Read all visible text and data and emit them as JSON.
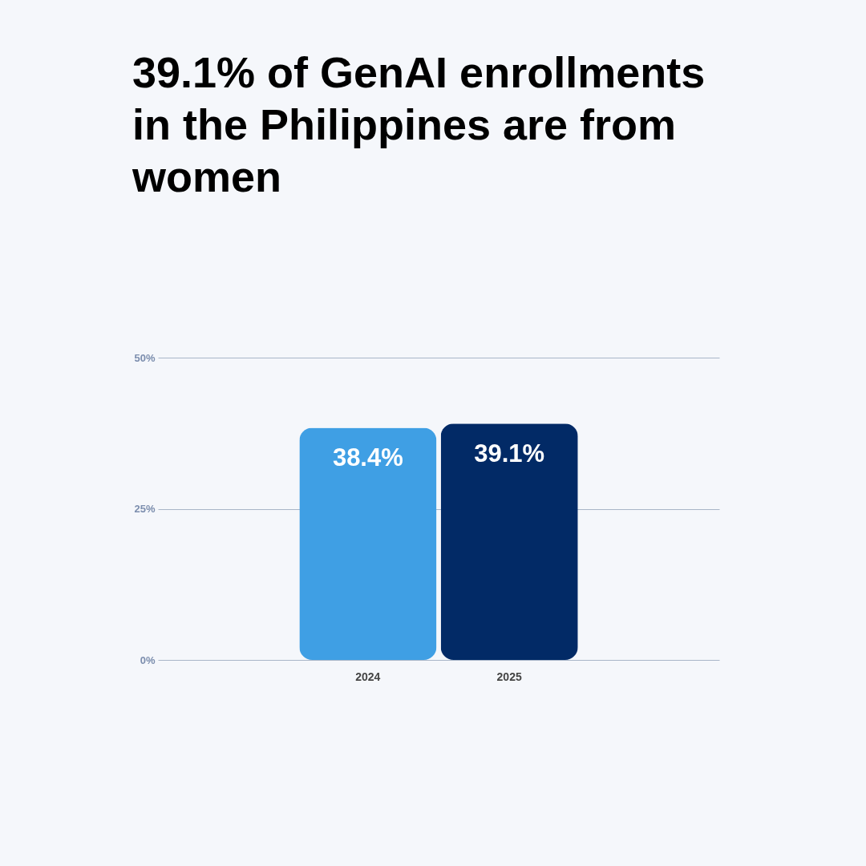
{
  "chart_data": {
    "type": "bar",
    "title": "39.1% of GenAI enrollments in the Philippines are from women",
    "categories": [
      "2024",
      "2025"
    ],
    "values": [
      38.4,
      39.1
    ],
    "colors": [
      "#3f9fe4",
      "#022a66"
    ],
    "value_labels": [
      "38.4%",
      "39.1%"
    ],
    "ylim": [
      0,
      50
    ],
    "yticks": [
      {
        "value": 0,
        "label": "0%"
      },
      {
        "value": 25,
        "label": "25%"
      },
      {
        "value": 50,
        "label": "50%"
      }
    ],
    "grid": "y"
  }
}
